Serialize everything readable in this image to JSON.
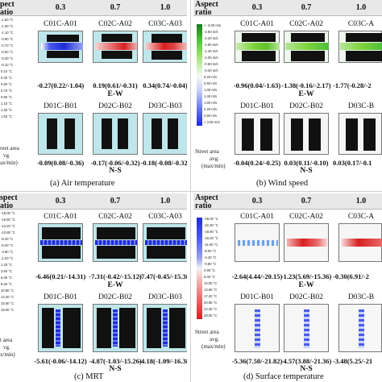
{
  "panels": {
    "a": {
      "caption": "(a)  Air temperature",
      "header": {
        "label_tail": "pect",
        "label_line2": "atio",
        "ratios": [
          "0.3",
          "0.7",
          "1.0"
        ]
      },
      "ew_codes": [
        "C01C-A01",
        "C02C-A02",
        "C03C-A03"
      ],
      "ew_stats": [
        "-0.27(0.22/-1.04)",
        "0.19(0.61/-0.31)",
        "0.34(0.74/-0.04)"
      ],
      "ew_label": "E-W",
      "ns_codes": [
        "D01C-B01",
        "D02C-B02",
        "D03C-B03"
      ],
      "ns_stats": [
        "-0.09(0.08/-0.36)",
        "-0.17(-0.06/-0.32)",
        "-0.18(-0.08/-0.32)"
      ],
      "ns_label": "N-S",
      "legend": [
        "-1.50 °C",
        "-1.30 °C",
        "-1.10 °C",
        "-0.90 °C",
        "-0.70 °C",
        "-0.50 °C",
        "-0.30 °C",
        "-0.10 °C",
        "0.10 °C",
        "0.30 °C",
        "0.50 °C",
        "0.70 °C",
        "0.90 °C",
        "1.10 °C",
        "1.30 °C",
        "1.50 °C"
      ],
      "side_note": [
        "reet area",
        "vg.",
        "ax/min)"
      ]
    },
    "b": {
      "caption": "(b)  Wind speed",
      "header": {
        "label_line1": "Aspect",
        "label_line2": "ratio",
        "ratios": [
          "0.3",
          "0.7",
          "1.0"
        ]
      },
      "ew_codes": [
        "C01C-A01",
        "C02C-A02",
        "C03C-A"
      ],
      "ew_stats": [
        "-0.96(0.04/-1.63)",
        "-1.38(-0.16/-2.17)",
        "-1.77(-0.28/-2"
      ],
      "ew_label": "E-W",
      "ns_codes": [
        "D01C-B01",
        "D02C-B02",
        "D03C-B"
      ],
      "ns_stats": [
        "-0.04(0.24/-0.25)",
        "0.03(0.11/-0.10)",
        "0.03(0.17/-0.1"
      ],
      "ns_label": "N-S",
      "legend": [
        "< -3.00 m/s",
        "-2.60 m/s",
        "-2.20 m/s",
        "-1.80 m/s",
        "-1.40 m/s",
        "-1.00 m/s",
        "-0.60 m/s",
        "-0.20 m/s",
        "0.20 m/s",
        "0.60 m/s",
        "1.00 m/s",
        "1.40 m/s",
        "1.80 m/s",
        "2.20 m/s",
        "2.60 m/s",
        "> 3.00 m/s"
      ],
      "legend_note": [
        "Street area",
        "avg.",
        "(max/min)"
      ]
    },
    "c": {
      "caption": "(c)  MRT",
      "header": {
        "label_line1": "spect",
        "label_line2": "atio",
        "ratios": [
          "0.3",
          "0.7",
          "1.0"
        ]
      },
      "ew_codes": [
        "C01C-A01",
        "C02C-A02",
        "C03C-A03"
      ],
      "ew_stats": [
        "-6.46(0.21/-14.31)",
        "-7.31(-0.42/-15.12)",
        "-7.47(-0.45/-15.38)"
      ],
      "ew_label": "E-W",
      "ns_codes": [
        "D01C-B01",
        "D02C-B02",
        "D03C-B03"
      ],
      "ns_stats": [
        "-5.61(-0.06/-14.12)",
        "-4.87(-1.03/-15.26)",
        "-4.18(-1.09/-16.38)"
      ],
      "ns_label": "N-S",
      "legend": [
        "-18.00 °C",
        "-15.60 °C",
        "-13.20 °C",
        "-10.80 °C",
        "-8.40 °C",
        "-6.00 °C",
        "-3.60 °C",
        "-1.20 °C",
        "1.20 °C",
        "3.60 °C",
        "6.00 °C",
        "8.40 °C",
        "10.80 °C",
        "13.20 °C",
        "15.60 °C",
        "18.00 °C"
      ],
      "side_note": [
        "t area",
        "vg.",
        "x/min)"
      ]
    },
    "d": {
      "caption": "(d)  Surface temperature",
      "header": {
        "label_line1": "Aspect",
        "label_line2": "ratio",
        "ratios": [
          "0.3",
          "0.7",
          "1.0"
        ]
      },
      "ew_codes": [
        "C01C-A01",
        "C02C-A02",
        "C03C-A"
      ],
      "ew_stats": [
        "-2.64(4.44/-20.15)",
        "-1.23(5.69/-15.36)",
        "-0.30(6.91/-2"
      ],
      "ew_label": "E-W",
      "ns_codes": [
        "D01C-B01",
        "D02C-B02",
        "D03C-B"
      ],
      "ns_stats": [
        "-5.36(7.50/-21.82)",
        "-4.57(3.88/-21.36)",
        "-3.48(5.25/-21"
      ],
      "ns_label": "N-S",
      "legend": [
        "-26.00 °C",
        "-22.40 °C",
        "-18.80 °C",
        "-15.20 °C",
        "-11.60 °C",
        "-8.00 °C",
        "-4.40 °C",
        "-0.80 °C",
        "2.80 °C",
        "6.40 °C",
        "10.00 °C",
        "13.60 °C",
        "17.20 °C",
        "20.80 °C",
        "24.40 °C",
        "28.00 °C"
      ],
      "legend_note": [
        "Street area",
        "avg.",
        "(max/min)"
      ]
    }
  },
  "colors": {
    "cold": "#1f2bd8",
    "warm": "#d81f1f",
    "wind": "#7fd23a",
    "neutral_bg": "#bfe6ea",
    "building": "#111111"
  }
}
